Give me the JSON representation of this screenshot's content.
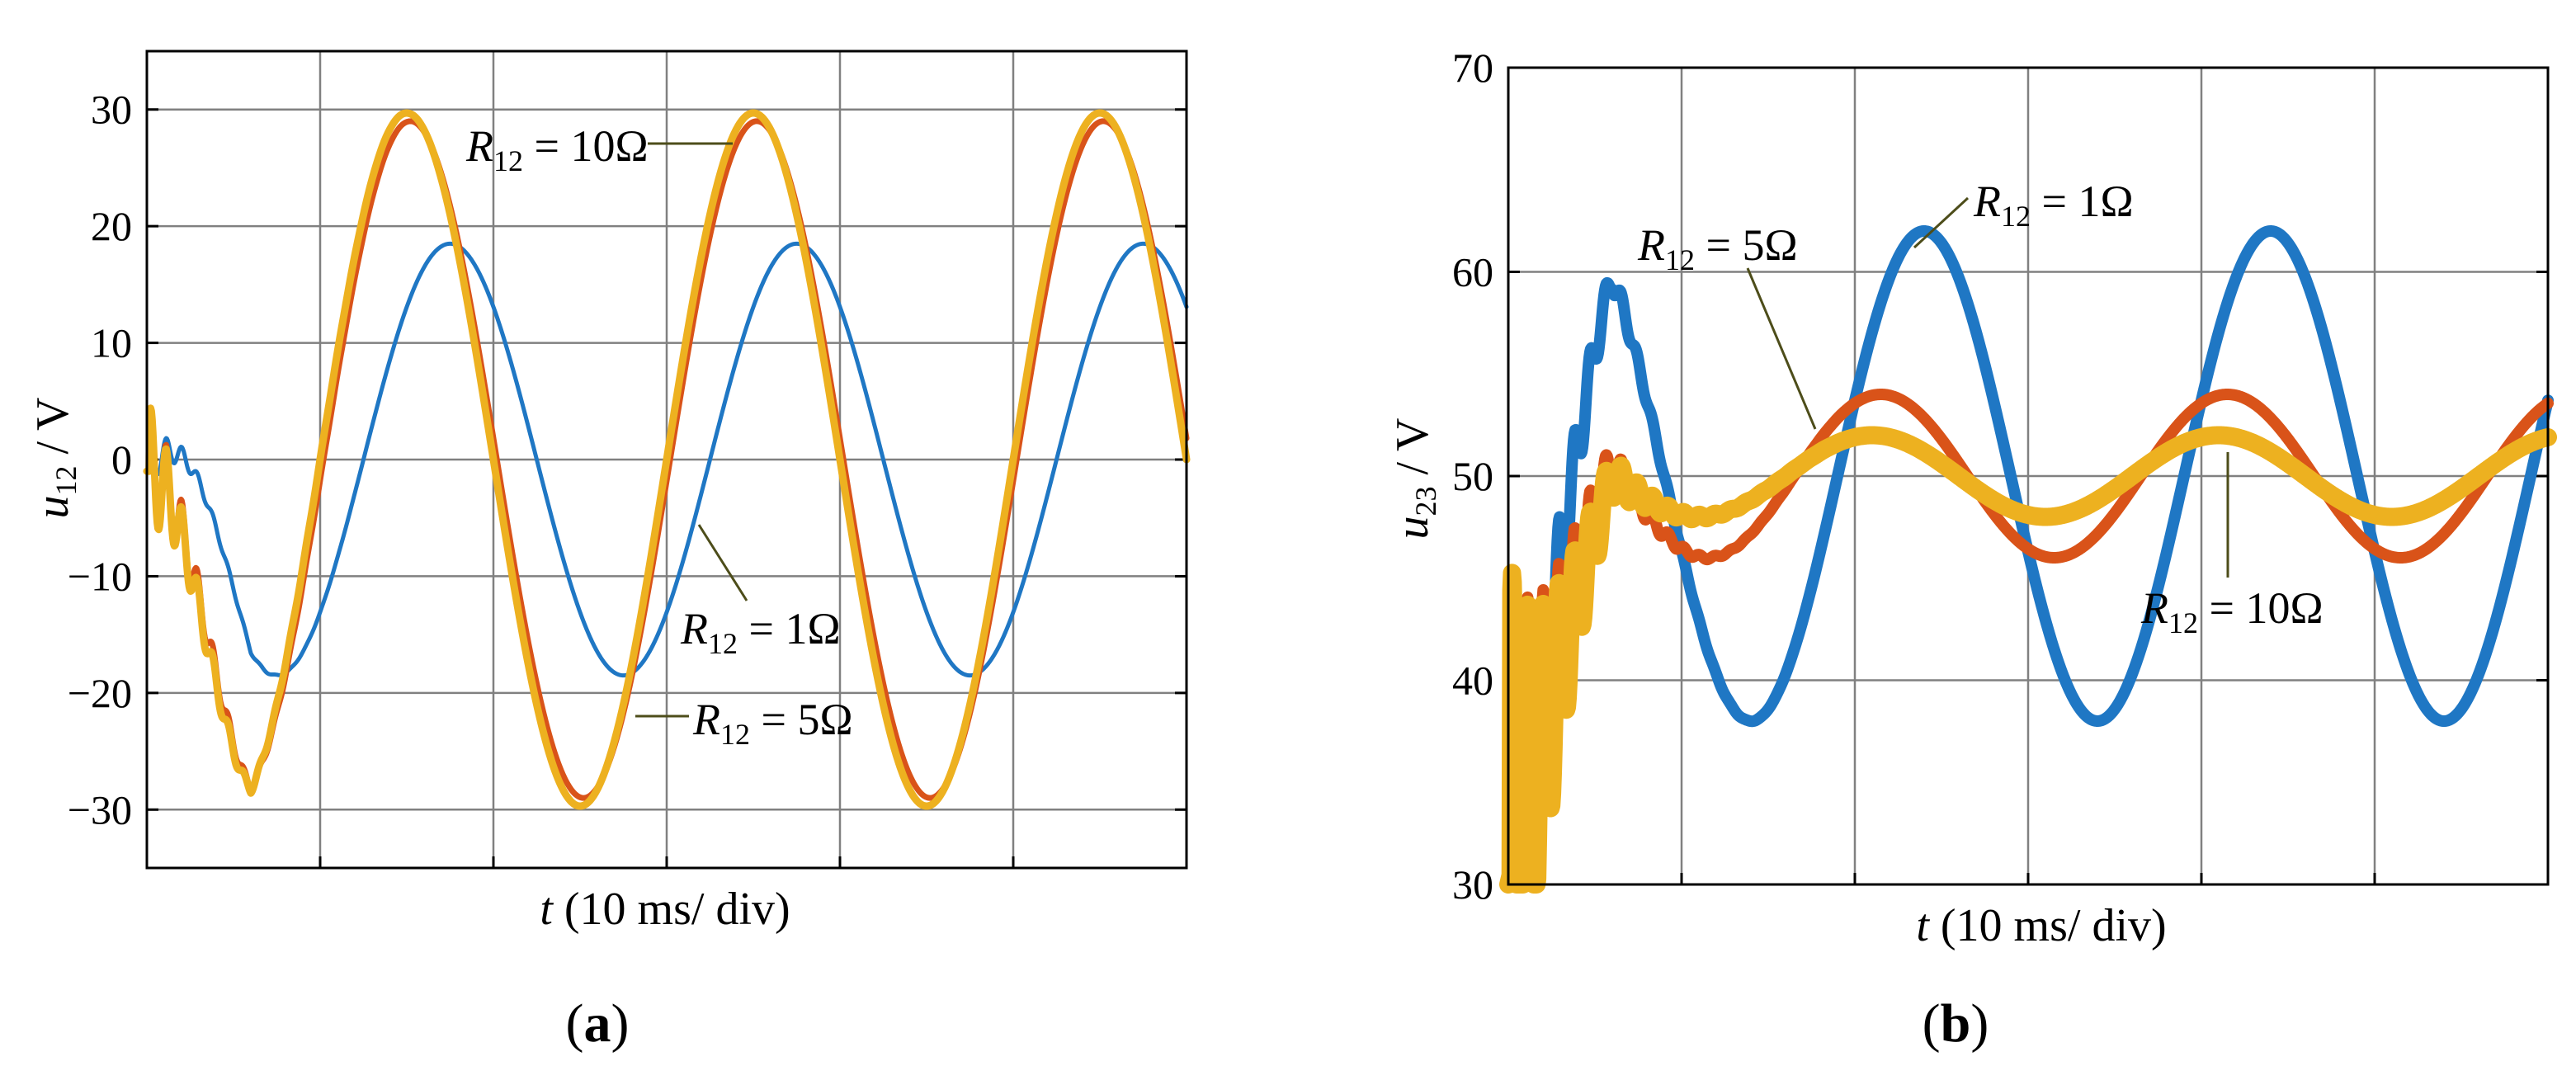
{
  "colors": {
    "r1": "#1f77c4",
    "r5": "#d95319",
    "r10": "#edb120",
    "grid": "#808080",
    "frame": "#000000"
  },
  "chart_data": [
    {
      "type": "line",
      "panel_label": "(a)",
      "panel_letter": "a",
      "xlabel": "t (10 ms/ div)",
      "xlabel_var": "t",
      "xlabel_rest": " (10 ms/ div)",
      "ylabel": "u12 / V",
      "ylabel_var": "u",
      "ylabel_sub": "12",
      "ylabel_rest": " / V",
      "x_unit": "ms",
      "xlim": [
        0,
        60
      ],
      "ylim": [
        -35,
        35
      ],
      "yticks": [
        -30,
        -20,
        -10,
        0,
        10,
        20,
        30
      ],
      "ytick_labels": [
        "−30",
        "−20",
        "−10",
        "0",
        "10",
        "20",
        "30"
      ],
      "grid": true,
      "series": [
        {
          "key": "r1",
          "label_main": "R",
          "label_sub": "12",
          "label_rest": " = 1Ω",
          "steady": {
            "offset": 0,
            "amplitude": 18.5,
            "period_ms": 20,
            "peak_ms": 17.5
          },
          "start_value": -1
        },
        {
          "key": "r5",
          "label_main": "R",
          "label_sub": "12",
          "label_rest": " = 5Ω",
          "steady": {
            "offset": 0,
            "amplitude": 29,
            "period_ms": 20,
            "peak_ms": 15.2
          },
          "start_value": -1
        },
        {
          "key": "r10",
          "label_main": "R",
          "label_sub": "12",
          "label_rest": " = 10Ω",
          "steady": {
            "offset": 0,
            "amplitude": 29.7,
            "period_ms": 20,
            "peak_ms": 15.0
          },
          "start_value": -1
        }
      ]
    },
    {
      "type": "line",
      "panel_label": "(b)",
      "panel_letter": "b",
      "xlabel": "t (10 ms/ div)",
      "xlabel_var": "t",
      "xlabel_rest": " (10 ms/ div)",
      "ylabel": "u23 / V",
      "ylabel_var": "u",
      "ylabel_sub": "23",
      "ylabel_rest": " / V",
      "x_unit": "ms",
      "xlim": [
        0,
        60
      ],
      "ylim": [
        30,
        70
      ],
      "yticks": [
        30,
        40,
        50,
        60,
        70
      ],
      "ytick_labels": [
        "30",
        "40",
        "50",
        "60",
        "70"
      ],
      "grid": true,
      "series": [
        {
          "key": "r1",
          "label_main": "R",
          "label_sub": "12",
          "label_rest": " = 1Ω",
          "steady": {
            "offset": 50,
            "amplitude": 12,
            "period_ms": 20,
            "peak_ms": 24
          },
          "start_value": 30
        },
        {
          "key": "r5",
          "label_main": "R",
          "label_sub": "12",
          "label_rest": " = 5Ω",
          "steady": {
            "offset": 50,
            "amplitude": 4,
            "period_ms": 20,
            "peak_ms": 21.5
          },
          "start_value": 30
        },
        {
          "key": "r10",
          "label_main": "R",
          "label_sub": "12",
          "label_rest": " = 10Ω",
          "steady": {
            "offset": 50,
            "amplitude": 2,
            "period_ms": 20,
            "peak_ms": 21
          },
          "start_value": 30
        }
      ]
    }
  ]
}
